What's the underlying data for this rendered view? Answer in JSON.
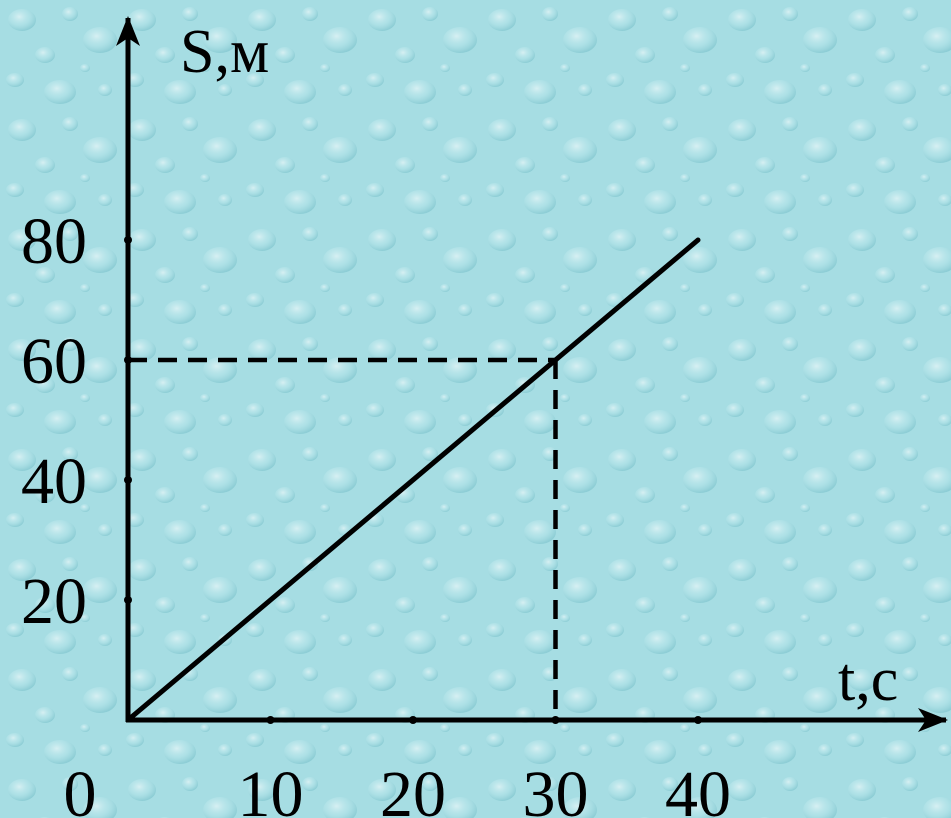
{
  "chart_data": {
    "type": "line",
    "xlabel": "t,c",
    "ylabel": "S,м",
    "origin_label": "0",
    "xlim": [
      0,
      40
    ],
    "ylim": [
      0,
      80
    ],
    "x_ticks": [
      10,
      20,
      30,
      40
    ],
    "y_ticks": [
      20,
      40,
      60,
      80
    ],
    "x_tick_labels": [
      "10",
      "20",
      "30",
      "40"
    ],
    "y_tick_labels": [
      "20",
      "40",
      "60",
      "80"
    ],
    "series": [
      {
        "x": [
          0,
          40
        ],
        "y": [
          0,
          80
        ]
      }
    ],
    "guide_point": {
      "x": 30,
      "y": 60
    },
    "grid": false,
    "colors": {
      "background": "#a6dde3",
      "line": "#000000"
    }
  }
}
